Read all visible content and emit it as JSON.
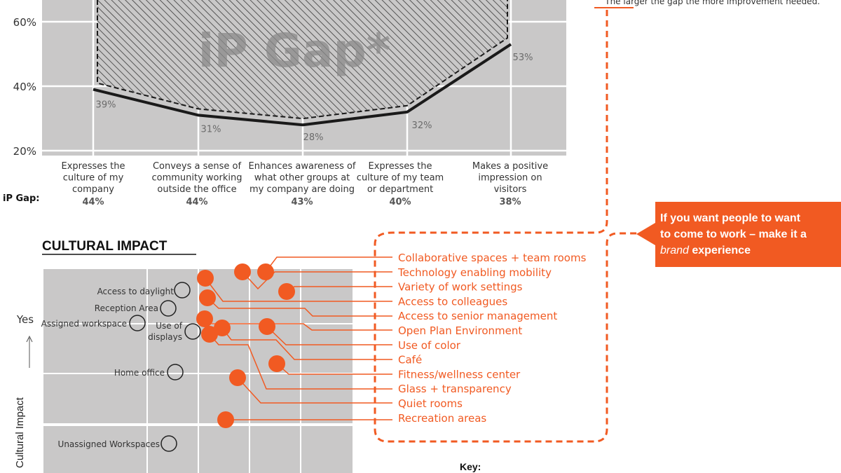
{
  "top_note": "The larger the gap the more improvement needed.",
  "chart_data": [
    {
      "type": "line",
      "title": "",
      "watermark": "iP Gap*",
      "ylim": [
        20,
        70
      ],
      "yticks": [
        "20%",
        "40%",
        "60%"
      ],
      "categories": [
        "Expresses the culture of my company",
        "Conveys a sense of community working outside the office",
        "Enhances awareness of what other groups at my company are doing",
        "Expresses the culture of my team or department",
        "Makes a positive impression on visitors"
      ],
      "category_lines": [
        [
          "Expresses the",
          "culture of my",
          "company"
        ],
        [
          "Conveys a sense of",
          "community working",
          "outside the office"
        ],
        [
          "Enhances awareness of",
          "what other groups at",
          "my company are doing"
        ],
        [
          "Expresses the",
          "culture of my team",
          "or department"
        ],
        [
          "Makes a positive",
          "impression on",
          "visitors"
        ]
      ],
      "series": [
        {
          "name": "",
          "values": [
            39,
            31,
            28,
            32,
            53
          ],
          "labels": [
            "39%",
            "31%",
            "28%",
            "32%",
            "53%"
          ]
        }
      ],
      "gap_label": "iP Gap:",
      "gap_values": [
        "44%",
        "44%",
        "43%",
        "40%",
        "38%"
      ],
      "colors": {
        "panel": "#c9c8c8",
        "line": "#1a1a1a",
        "accent": "#f15a22"
      }
    },
    {
      "type": "scatter",
      "title": "CULTURAL IMPACT",
      "ylabel": "Cultural Impact",
      "y_tick_label": "Yes",
      "key_label": "Key:",
      "outlined_points": [
        "Access to daylight",
        "Reception Area",
        "Assigned workspace",
        "Use of displays",
        "Home office",
        "Unassigned Workspaces"
      ],
      "outlined_label_lines": [
        [
          "Access to daylight"
        ],
        [
          "Reception Area"
        ],
        [
          "Assigned workspace"
        ],
        [
          "Use of",
          "displays"
        ],
        [
          "Home office"
        ],
        [
          "Unassigned Workspaces"
        ]
      ],
      "highlighted_points": [
        "Collaborative spaces + team rooms",
        "Technology enabling mobility",
        "Variety of work settings",
        "Access to colleagues",
        "Access to senior management",
        "Open Plan Environment",
        "Use of color",
        "Café",
        "Fitness/wellness center",
        "Glass + transparency",
        "Quiet rooms",
        "Recreation areas"
      ]
    }
  ],
  "callout": {
    "line1": "If you want people to want",
    "line2_pre": "to come to work – make it a",
    "line3_em": "brand",
    "line3_post": " experience"
  }
}
